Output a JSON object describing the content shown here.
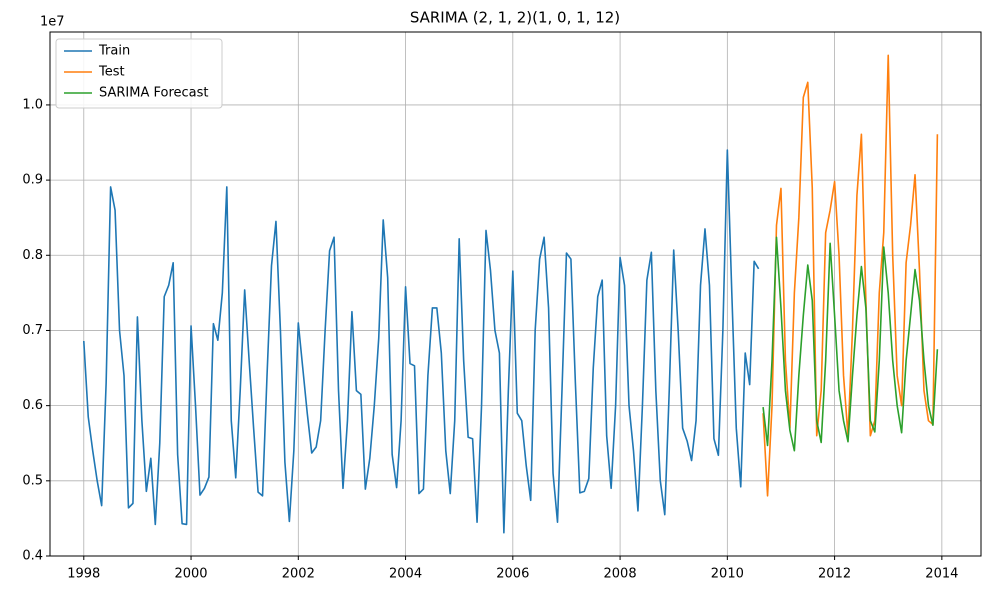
{
  "chart_data": {
    "type": "line",
    "title": "SARIMA (2, 1, 2)(1, 0, 1, 12)",
    "y_offset_label": "1e7",
    "xlim": [
      1997.37,
      2014.73
    ],
    "xticks": [
      1998,
      2000,
      2002,
      2004,
      2006,
      2008,
      2010,
      2012,
      2014
    ],
    "ylim": [
      0.4,
      1.097
    ],
    "yticks": [
      0.4,
      0.5,
      0.6,
      0.7,
      0.8,
      0.9,
      {
        "value": 1.0,
        "label": "1.0"
      }
    ],
    "grid": true,
    "legend": "upper left",
    "series": [
      {
        "name": "Train",
        "color": "#1f77b4",
        "x": [
          1998,
          1998.0833,
          1998.1667,
          1998.25,
          1998.3333,
          1998.4167,
          1998.5,
          1998.5833,
          1998.6667,
          1998.75,
          1998.8333,
          1998.9167,
          1999,
          1999.0833,
          1999.1667,
          1999.25,
          1999.3333,
          1999.4167,
          1999.5,
          1999.5833,
          1999.6667,
          1999.75,
          1999.8333,
          1999.9167,
          2000,
          2000.0833,
          2000.1667,
          2000.25,
          2000.3333,
          2000.4167,
          2000.5,
          2000.5833,
          2000.6667,
          2000.75,
          2000.8333,
          2000.9167,
          2001,
          2001.0833,
          2001.1667,
          2001.25,
          2001.3333,
          2001.4167,
          2001.5,
          2001.5833,
          2001.6667,
          2001.75,
          2001.8333,
          2001.9167,
          2002,
          2002.0833,
          2002.1667,
          2002.25,
          2002.3333,
          2002.4167,
          2002.5,
          2002.5833,
          2002.6667,
          2002.75,
          2002.8333,
          2002.9167,
          2003,
          2003.0833,
          2003.1667,
          2003.25,
          2003.3333,
          2003.4167,
          2003.5,
          2003.5833,
          2003.6667,
          2003.75,
          2003.8333,
          2003.9167,
          2004,
          2004.0833,
          2004.1667,
          2004.25,
          2004.3333,
          2004.4167,
          2004.5,
          2004.5833,
          2004.6667,
          2004.75,
          2004.8333,
          2004.9167,
          2005,
          2005.0833,
          2005.1667,
          2005.25,
          2005.3333,
          2005.4167,
          2005.5,
          2005.5833,
          2005.6667,
          2005.75,
          2005.8333,
          2005.9167,
          2006,
          2006.0833,
          2006.1667,
          2006.25,
          2006.3333,
          2006.4167,
          2006.5,
          2006.5833,
          2006.6667,
          2006.75,
          2006.8333,
          2006.9167,
          2007,
          2007.0833,
          2007.1667,
          2007.25,
          2007.3333,
          2007.4167,
          2007.5,
          2007.5833,
          2007.6667,
          2007.75,
          2007.8333,
          2007.9167,
          2008,
          2008.0833,
          2008.1667,
          2008.25,
          2008.3333,
          2008.4167,
          2008.5,
          2008.5833,
          2008.6667,
          2008.75,
          2008.8333,
          2008.9167,
          2009,
          2009.0833,
          2009.1667,
          2009.25,
          2009.3333,
          2009.4167,
          2009.5,
          2009.5833,
          2009.6667,
          2009.75,
          2009.8333,
          2009.9167,
          2010,
          2010.0833,
          2010.1667,
          2010.25,
          2010.3333,
          2010.4167,
          2010.5,
          2010.5833
        ],
        "values": [
          0.686,
          0.585,
          0.54,
          0.5,
          0.467,
          0.63,
          0.891,
          0.86,
          0.7,
          0.64,
          0.464,
          0.47,
          0.718,
          0.58,
          0.486,
          0.53,
          0.442,
          0.55,
          0.745,
          0.76,
          0.79,
          0.535,
          0.443,
          0.442,
          0.706,
          0.6,
          0.481,
          0.49,
          0.505,
          0.709,
          0.687,
          0.75,
          0.891,
          0.58,
          0.504,
          0.62,
          0.754,
          0.66,
          0.57,
          0.485,
          0.48,
          0.64,
          0.786,
          0.845,
          0.7,
          0.525,
          0.446,
          0.54,
          0.71,
          0.65,
          0.59,
          0.537,
          0.545,
          0.58,
          0.7,
          0.806,
          0.824,
          0.62,
          0.49,
          0.58,
          0.725,
          0.62,
          0.615,
          0.489,
          0.53,
          0.6,
          0.69,
          0.847,
          0.77,
          0.535,
          0.491,
          0.58,
          0.758,
          0.656,
          0.653,
          0.483,
          0.489,
          0.64,
          0.73,
          0.73,
          0.67,
          0.54,
          0.483,
          0.58,
          0.822,
          0.66,
          0.558,
          0.556,
          0.445,
          0.6,
          0.833,
          0.78,
          0.7,
          0.67,
          0.431,
          0.62,
          0.779,
          0.59,
          0.58,
          0.52,
          0.474,
          0.7,
          0.795,
          0.824,
          0.73,
          0.51,
          0.445,
          0.62,
          0.803,
          0.795,
          0.63,
          0.484,
          0.486,
          0.503,
          0.65,
          0.745,
          0.767,
          0.56,
          0.49,
          0.6,
          0.797,
          0.76,
          0.6,
          0.54,
          0.46,
          0.6,
          0.767,
          0.804,
          0.62,
          0.5,
          0.455,
          0.62,
          0.807,
          0.7,
          0.57,
          0.553,
          0.527,
          0.58,
          0.76,
          0.835,
          0.76,
          0.556,
          0.534,
          0.7,
          0.94,
          0.75,
          0.57,
          0.492,
          0.67,
          0.628,
          0.792,
          0.782
        ]
      },
      {
        "name": "Test",
        "color": "#ff7f0e",
        "x": [
          2010.6667,
          2010.75,
          2010.8333,
          2010.9167,
          2011,
          2011.0833,
          2011.1667,
          2011.25,
          2011.3333,
          2011.4167,
          2011.5,
          2011.5833,
          2011.6667,
          2011.75,
          2011.8333,
          2011.9167,
          2012,
          2012.0833,
          2012.1667,
          2012.25,
          2012.3333,
          2012.4167,
          2012.5,
          2012.5833,
          2012.6667,
          2012.75,
          2012.8333,
          2012.9167,
          2013,
          2013.0833,
          2013.1667,
          2013.25,
          2013.3333,
          2013.4167,
          2013.5,
          2013.5833,
          2013.6667,
          2013.75,
          2013.8333,
          2013.9167
        ],
        "values": [
          0.59,
          0.48,
          0.6,
          0.84,
          0.889,
          0.66,
          0.57,
          0.75,
          0.85,
          1.01,
          1.03,
          0.89,
          0.56,
          0.62,
          0.83,
          0.86,
          0.898,
          0.8,
          0.64,
          0.56,
          0.7,
          0.88,
          0.961,
          0.74,
          0.56,
          0.58,
          0.75,
          0.83,
          1.066,
          0.8,
          0.64,
          0.6,
          0.79,
          0.84,
          0.907,
          0.78,
          0.62,
          0.58,
          0.575,
          0.961
        ]
      },
      {
        "name": "SARIMA Forecast",
        "color": "#2ca02c",
        "x": [
          2010.6667,
          2010.75,
          2010.8333,
          2010.9167,
          2011,
          2011.0833,
          2011.1667,
          2011.25,
          2011.3333,
          2011.4167,
          2011.5,
          2011.5833,
          2011.6667,
          2011.75,
          2011.8333,
          2011.9167,
          2012,
          2012.0833,
          2012.1667,
          2012.25,
          2012.3333,
          2012.4167,
          2012.5,
          2012.5833,
          2012.6667,
          2012.75,
          2012.8333,
          2012.9167,
          2013,
          2013.0833,
          2013.1667,
          2013.25,
          2013.3333,
          2013.4167,
          2013.5,
          2013.5833,
          2013.6667,
          2013.75,
          2013.8333,
          2013.9167
        ],
        "values": [
          0.598,
          0.547,
          0.66,
          0.824,
          0.73,
          0.62,
          0.567,
          0.54,
          0.64,
          0.72,
          0.787,
          0.74,
          0.58,
          0.551,
          0.66,
          0.816,
          0.72,
          0.62,
          0.58,
          0.552,
          0.64,
          0.72,
          0.785,
          0.73,
          0.58,
          0.565,
          0.66,
          0.811,
          0.75,
          0.66,
          0.6,
          0.564,
          0.66,
          0.72,
          0.781,
          0.74,
          0.66,
          0.6,
          0.574,
          0.675
        ]
      }
    ]
  }
}
